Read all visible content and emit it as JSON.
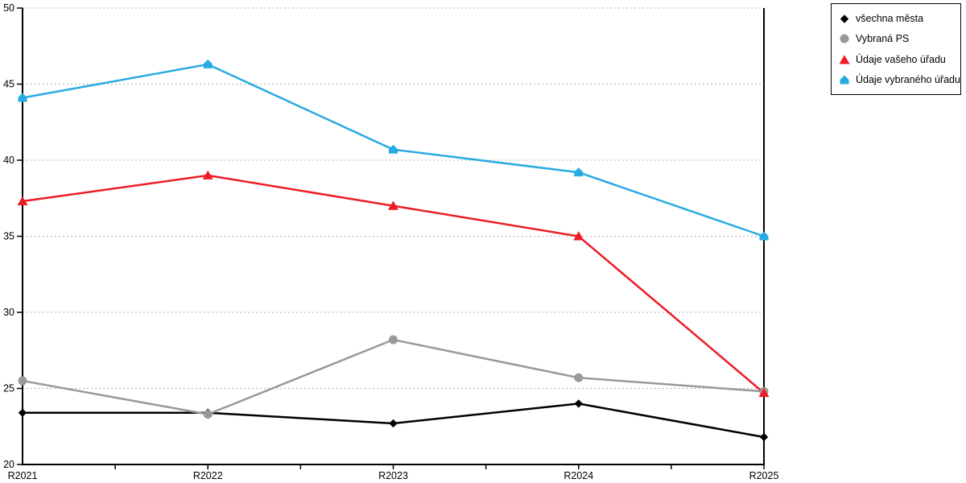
{
  "chart_data": {
    "type": "line",
    "categories": [
      "R2021",
      "R2022",
      "R2023",
      "R2024",
      "R2025"
    ],
    "series": [
      {
        "name": "všechna města",
        "color": "#000000",
        "marker": "diamond",
        "values": [
          23.4,
          23.4,
          22.7,
          24.0,
          21.8
        ]
      },
      {
        "name": "Vybraná PS",
        "color": "#999999",
        "marker": "circle",
        "values": [
          25.5,
          23.3,
          28.2,
          25.7,
          24.8
        ]
      },
      {
        "name": "Údaje vašeho úřadu",
        "color": "#ED1C24",
        "marker": "triangle",
        "values": [
          37.3,
          39.0,
          37.0,
          35.0,
          24.7
        ]
      },
      {
        "name": "Údaje vybraného úřadu",
        "color": "#29ABE2",
        "marker": "pentagon",
        "values": [
          44.1,
          46.3,
          40.7,
          39.2,
          35.0
        ]
      }
    ],
    "title": "",
    "xlabel": "",
    "ylabel": "",
    "ylim": [
      20,
      50
    ],
    "yticks": [
      20,
      25,
      30,
      35,
      40,
      45,
      50
    ],
    "grid": "horizontal-dashed",
    "gridline_color": "#b3b3b3",
    "axis_color": "#000000",
    "legend_position": "top-right-outside"
  }
}
